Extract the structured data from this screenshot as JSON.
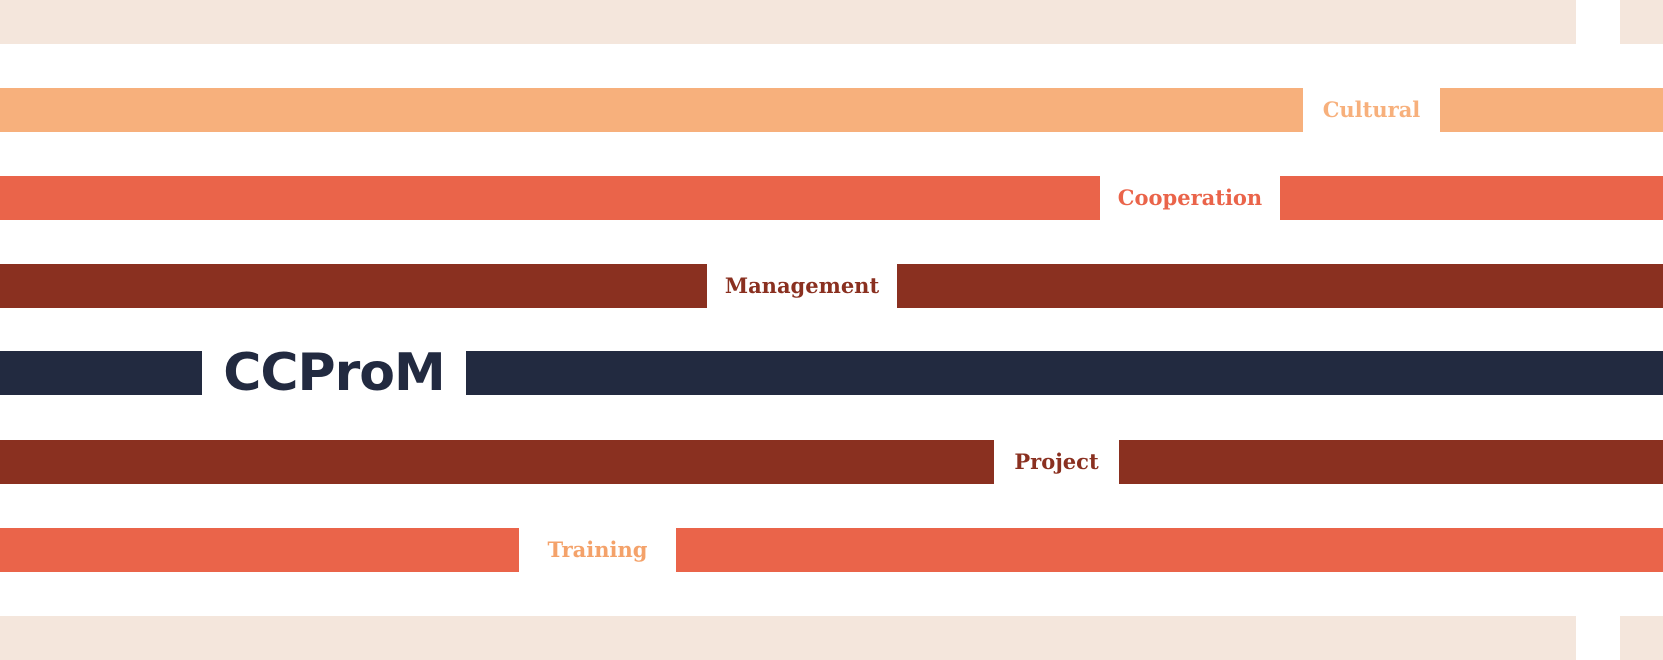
{
  "brand": {
    "logo_text": "CCProM",
    "color": "#222a40"
  },
  "palette": {
    "cream": "#f4e6dc",
    "peach": "#f7b07c",
    "coral": "#ea644a",
    "maroon": "#8a3020",
    "navy": "#222a40",
    "training_label": "#f4a26a"
  },
  "words": {
    "cultural": "Cultural",
    "cooperation": "Cooperation",
    "management": "Management",
    "project": "Project",
    "training": "Training"
  }
}
